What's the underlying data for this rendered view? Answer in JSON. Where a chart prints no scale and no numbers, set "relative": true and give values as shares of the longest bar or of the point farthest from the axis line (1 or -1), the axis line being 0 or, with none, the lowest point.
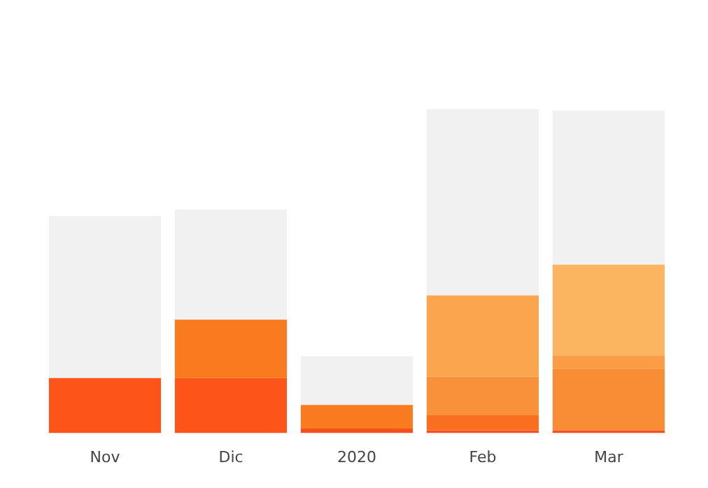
{
  "chart_data": {
    "type": "bar",
    "stacked": true,
    "relative": true,
    "categories": [
      "Nov",
      "Dic",
      "2020",
      "Feb",
      "Mar"
    ],
    "series": [
      {
        "colors": [
          "#fc5419",
          "#fc5419",
          "#f4511e",
          "#f4511e",
          "#f4511e"
        ],
        "values": [
          0.17,
          0.17,
          0.014,
          0.009,
          0.009
        ]
      },
      {
        "colors": [
          "#f97a1f",
          "#f97a1f",
          "#f97a1f",
          "#f96f1f",
          "#f88d35"
        ],
        "values": [
          null,
          0.18,
          0.073,
          0.046,
          0.19
        ]
      },
      {
        "colors": [
          "#f9913a",
          "#f9913a",
          "#f9913a",
          "#f9913a",
          "#fa9d44"
        ],
        "values": [
          null,
          null,
          null,
          0.12,
          0.041
        ]
      },
      {
        "colors": [
          "#fba64f",
          "#fba64f",
          "#fba64f",
          "#fba64f",
          "#fbb45f"
        ],
        "values": [
          null,
          null,
          null,
          0.25,
          0.28
        ]
      },
      {
        "colors": [
          "#f1f1f1",
          "#f1f1f1",
          "#f1f1f1",
          "#f1f1f1",
          "#f1f1f1"
        ],
        "values": [
          0.5,
          0.34,
          0.15,
          0.575,
          0.475
        ]
      }
    ]
  }
}
